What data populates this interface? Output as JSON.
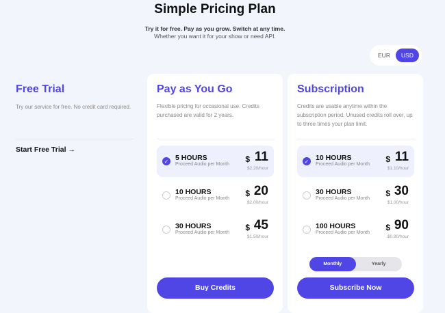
{
  "header": {
    "title": "Simple Pricing Plan",
    "subtitle": "Try it for free. Pay as you grow. Switch at any time.",
    "tagline": "Whether you want it for your show or need API."
  },
  "currency": {
    "options": [
      "EUR",
      "USD"
    ],
    "selected": "USD"
  },
  "free_trial": {
    "title": "Free Trial",
    "description": "Try our service for free. No credit card required.",
    "link": "Start Free Trial",
    "link_icon": "arrow-right-icon"
  },
  "accent": "#4f46e5",
  "payg": {
    "title": "Pay as You Go",
    "description": "Flexible pricing for occasional use. Credits purchased are valid for 2 years.",
    "button": "Buy Credits",
    "plans": [
      {
        "hours": "5 HOURS",
        "desc": "Proceed Audio per Month",
        "currency": "$",
        "price": "11",
        "rate": "$2.20/hour",
        "selected": true
      },
      {
        "hours": "10 HOURS",
        "desc": "Proceed Audio per Month",
        "currency": "$",
        "price": "20",
        "rate": "$2.00/hour",
        "selected": false
      },
      {
        "hours": "30 HOURS",
        "desc": "Proceed Audio per Month",
        "currency": "$",
        "price": "45",
        "rate": "$1.50/hour",
        "selected": false
      }
    ]
  },
  "subscription": {
    "title": "Subscription",
    "description": "Credits are usable anytime within the subscription period. Unused credits roll over, up to three times your plan limit.",
    "button": "Subscribe Now",
    "billing": [
      "Monthly",
      "Yearly"
    ],
    "billing_selected": "Monthly",
    "plans": [
      {
        "hours": "10 HOURS",
        "desc": "Proceed Audio per Month",
        "currency": "$",
        "price": "11",
        "rate": "$1.10/hour",
        "selected": true
      },
      {
        "hours": "30 HOURS",
        "desc": "Proceed Audio per Month",
        "currency": "$",
        "price": "30",
        "rate": "$1.00/hour",
        "selected": false
      },
      {
        "hours": "100 HOURS",
        "desc": "Proceed Audio per Month",
        "currency": "$",
        "price": "90",
        "rate": "$0.90/hour",
        "selected": false
      }
    ]
  }
}
